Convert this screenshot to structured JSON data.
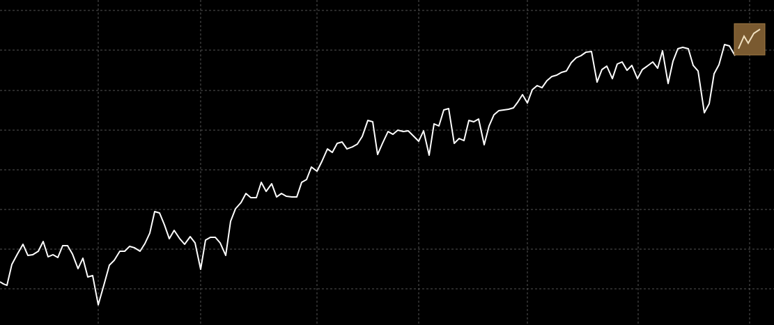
{
  "chart_data": {
    "type": "line",
    "color": "#ffffff",
    "grid": true,
    "xlim": [
      0,
      1111
    ],
    "ylim": [
      0,
      467
    ],
    "xticks": [
      141,
      288,
      455,
      601,
      757,
      916,
      1076
    ],
    "yticks": [
      52,
      109,
      166,
      223,
      280,
      337,
      395,
      452
    ],
    "x": [
      0,
      5,
      10,
      17,
      25,
      33,
      40,
      47,
      55,
      62,
      69,
      76,
      83,
      90,
      97,
      104,
      112,
      119,
      126,
      133,
      141,
      149,
      157,
      164,
      172,
      179,
      186,
      193,
      201,
      208,
      215,
      222,
      229,
      236,
      243,
      250,
      258,
      265,
      273,
      280,
      288,
      295,
      302,
      309,
      316,
      324,
      331,
      338,
      346,
      353,
      360,
      368,
      375,
      382,
      390,
      397,
      404,
      411,
      419,
      426,
      433,
      440,
      447,
      455,
      462,
      470,
      477,
      484,
      491,
      498,
      506,
      513,
      520,
      528,
      535,
      542,
      549,
      557,
      564,
      571,
      579,
      586,
      593,
      601,
      608,
      616,
      623,
      630,
      637,
      644,
      652,
      659,
      666,
      673,
      680,
      687,
      695,
      702,
      709,
      716,
      723,
      730,
      737,
      743,
      750,
      757,
      764,
      771,
      778,
      785,
      792,
      799,
      806,
      813,
      820,
      827,
      834,
      841,
      849,
      857,
      864,
      871,
      879,
      886,
      893,
      900,
      907,
      915,
      922,
      929,
      937,
      944,
      951,
      959,
      966,
      973,
      980,
      988,
      995,
      1002,
      1011,
      1018,
      1025,
      1032,
      1040,
      1047,
      1055
    ],
    "values": [
      62,
      59,
      57,
      87,
      102,
      116,
      100,
      101,
      106,
      120,
      98,
      101,
      97,
      114,
      114,
      102,
      81,
      96,
      69,
      71,
      29,
      57,
      86,
      93,
      106,
      106,
      113,
      111,
      106,
      117,
      132,
      163,
      161,
      144,
      124,
      136,
      124,
      116,
      127,
      118,
      80,
      122,
      126,
      126,
      118,
      100,
      149,
      167,
      176,
      189,
      183,
      183,
      205,
      192,
      203,
      184,
      189,
      185,
      184,
      184,
      205,
      209,
      227,
      221,
      235,
      253,
      248,
      261,
      263,
      253,
      256,
      260,
      271,
      294,
      292,
      245,
      261,
      278,
      274,
      280,
      278,
      279,
      272,
      264,
      279,
      244,
      289,
      286,
      309,
      311,
      261,
      268,
      265,
      294,
      292,
      296,
      259,
      286,
      302,
      308,
      309,
      310,
      312,
      320,
      331,
      319,
      338,
      344,
      341,
      351,
      357,
      359,
      363,
      365,
      377,
      384,
      387,
      392,
      393,
      349,
      367,
      372,
      354,
      375,
      378,
      366,
      373,
      354,
      367,
      372,
      378,
      369,
      394,
      347,
      379,
      397,
      399,
      397,
      373,
      365,
      305,
      318,
      361,
      374,
      403,
      401,
      387
    ]
  }
}
